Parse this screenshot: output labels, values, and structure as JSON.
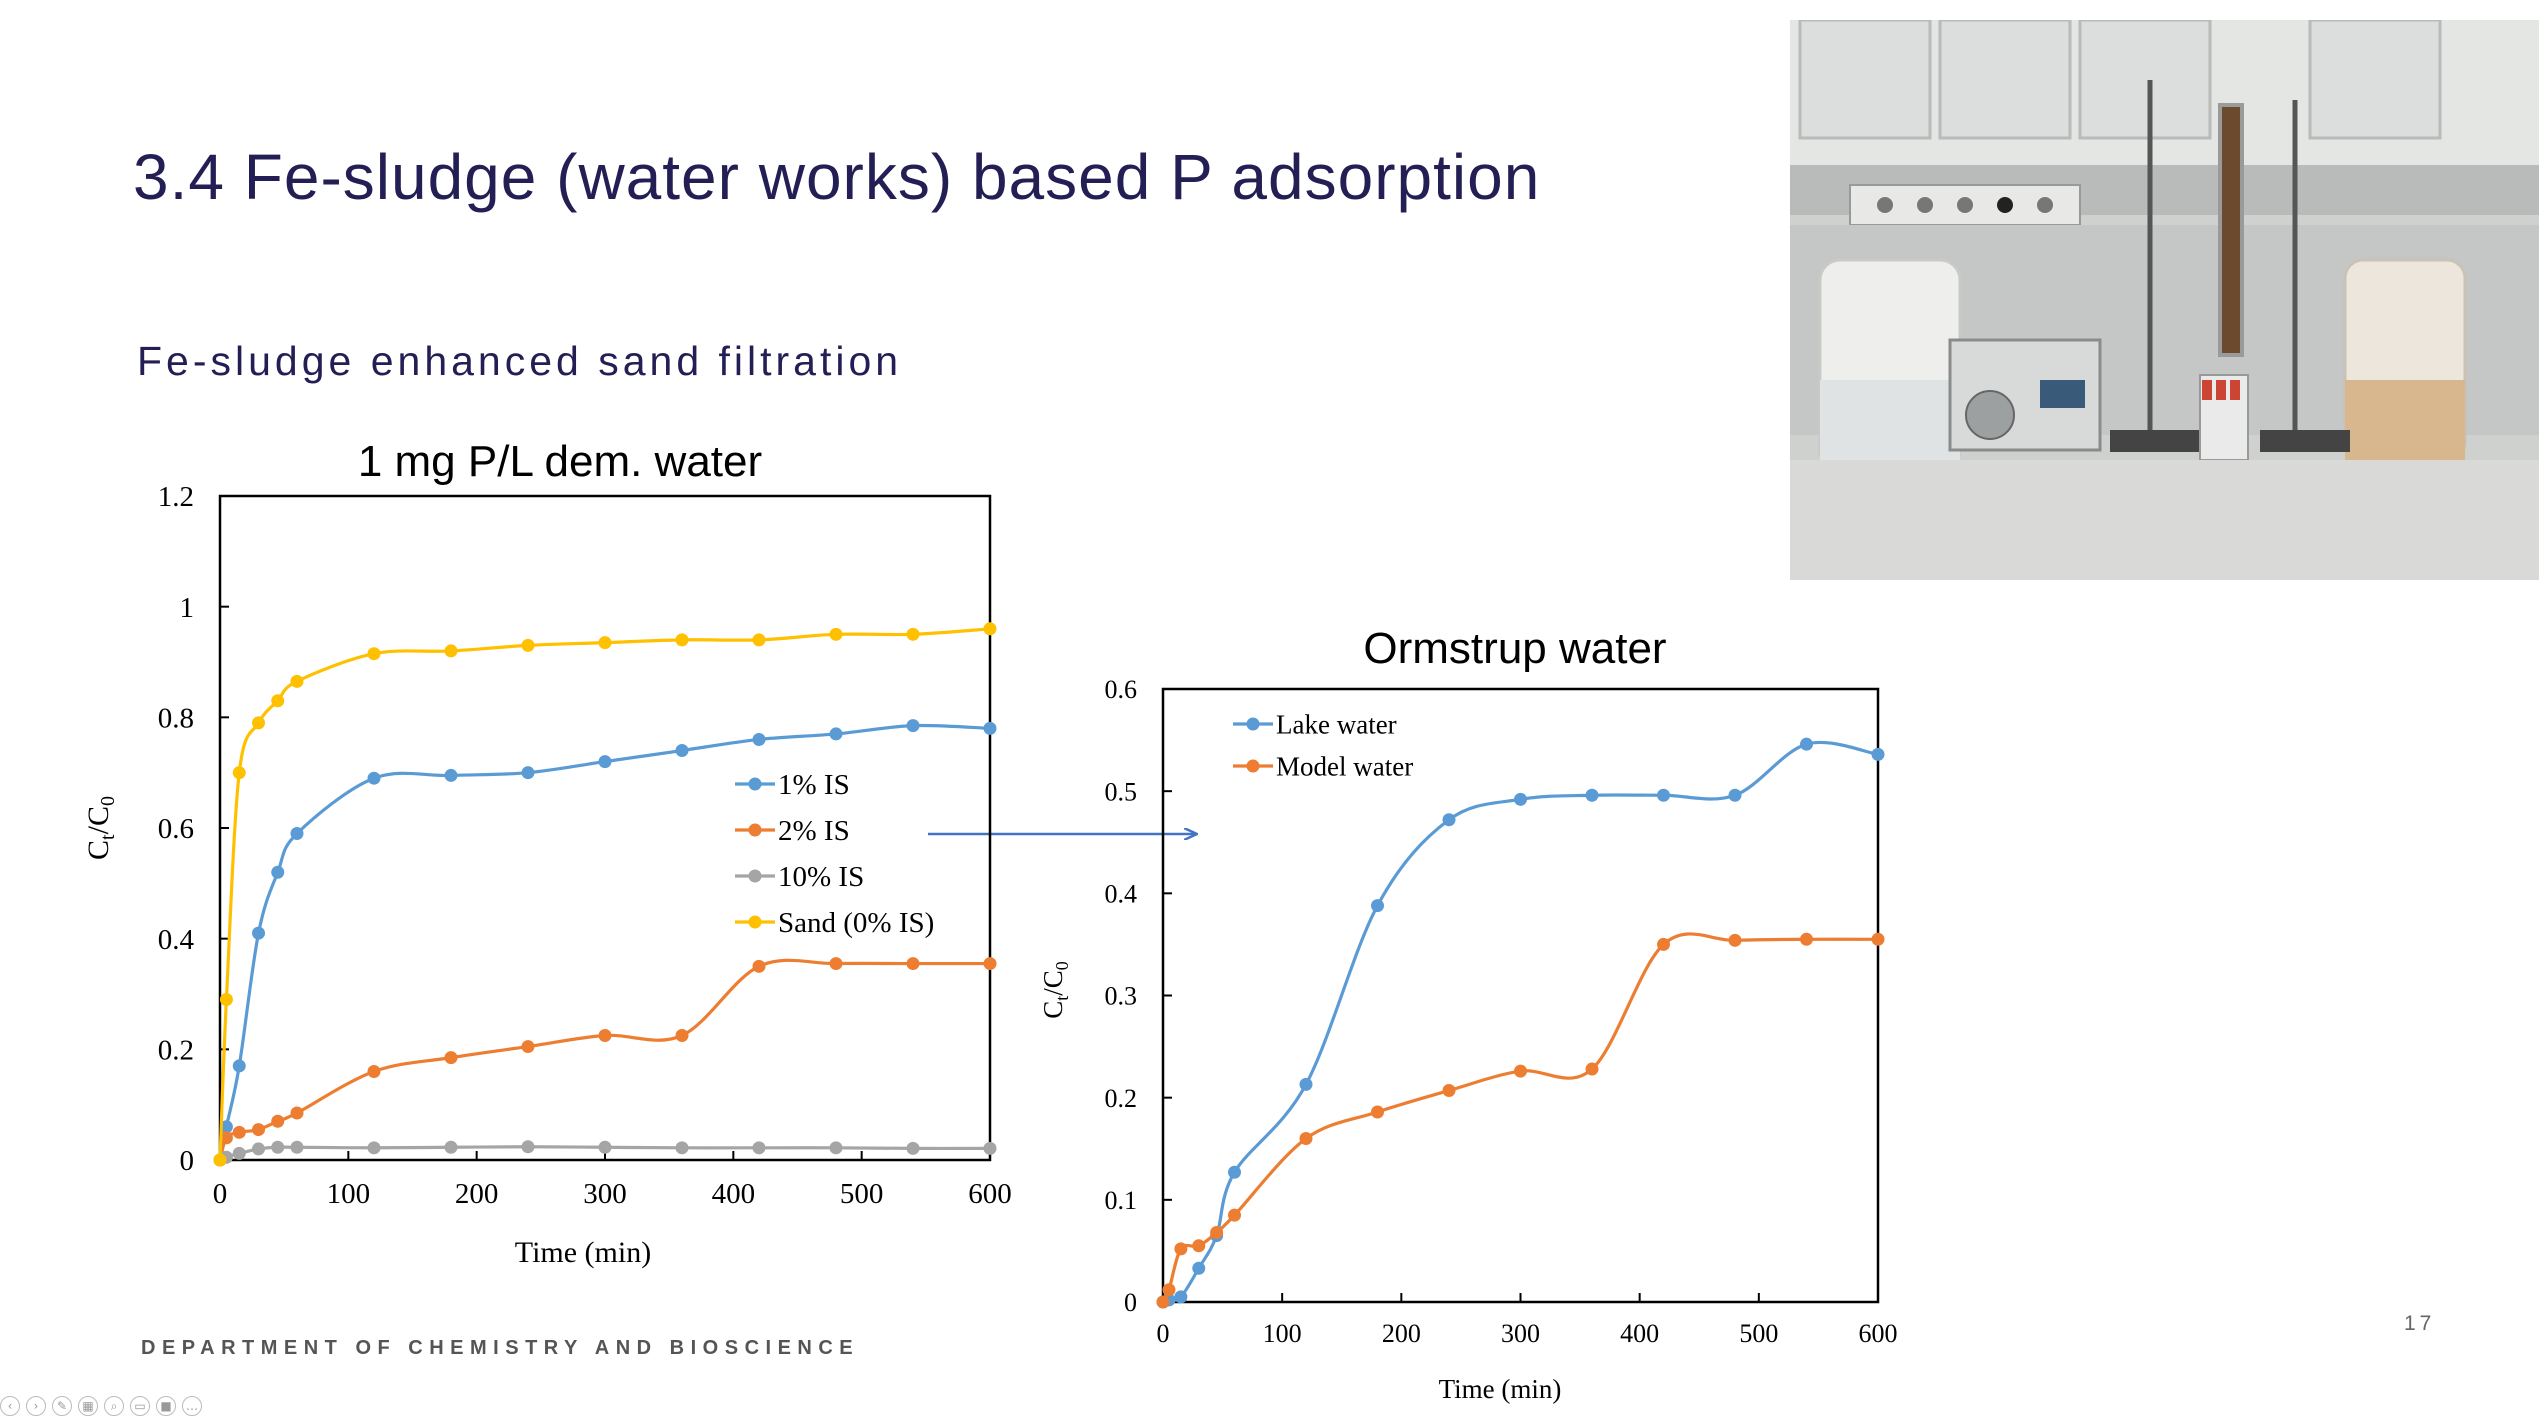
{
  "slide": {
    "title": "3.4 Fe-sludge (water works) based P adsorption",
    "subtitle": "Fe-sludge enhanced sand filtration",
    "footer": "DEPARTMENT OF CHEMISTRY AND BIOSCIENCE",
    "page_number": "17"
  },
  "toolbar": {
    "icons": [
      "previous-icon",
      "next-icon",
      "pen-icon",
      "slides-icon",
      "zoom-icon",
      "subtitles-icon",
      "camera-icon",
      "more-icon"
    ]
  },
  "photo": {
    "description_icon": "lab-setup-photo"
  },
  "colors": {
    "blue": "#5b9bd5",
    "orange": "#ed7d31",
    "gray": "#a5a5a5",
    "yellow": "#ffc000",
    "navy": "#231f54",
    "arrow": "#4472c4"
  },
  "chart_data": [
    {
      "type": "line",
      "title": "1 mg P/L dem. water",
      "xlabel": "Time (min)",
      "ylabel_main": "C",
      "ylabel_sub1": "t",
      "ylabel_slash": "/C",
      "ylabel_sub2": "0",
      "xlim": [
        0,
        600
      ],
      "ylim": [
        0,
        1.2
      ],
      "xticks": [
        "0",
        "100",
        "200",
        "300",
        "400",
        "500",
        "600"
      ],
      "yticks": [
        "0",
        "0.2",
        "0.4",
        "0.6",
        "0.8",
        "1",
        "1.2"
      ],
      "legend_position": "right-middle",
      "series": [
        {
          "name": "1% IS",
          "color": "#5b9bd5",
          "x": [
            0,
            5,
            15,
            30,
            45,
            60,
            120,
            180,
            240,
            300,
            360,
            420,
            480,
            540,
            600
          ],
          "y": [
            0,
            0.06,
            0.17,
            0.41,
            0.52,
            0.59,
            0.69,
            0.695,
            0.7,
            0.72,
            0.74,
            0.76,
            0.77,
            0.785,
            0.78
          ]
        },
        {
          "name": "2% IS",
          "color": "#ed7d31",
          "x": [
            0,
            5,
            15,
            30,
            45,
            60,
            120,
            180,
            240,
            300,
            360,
            420,
            480,
            540,
            600
          ],
          "y": [
            0,
            0.04,
            0.05,
            0.055,
            0.07,
            0.085,
            0.16,
            0.185,
            0.205,
            0.225,
            0.225,
            0.35,
            0.355,
            0.355,
            0.355
          ]
        },
        {
          "name": "10% IS",
          "color": "#a5a5a5",
          "x": [
            0,
            5,
            15,
            30,
            45,
            60,
            120,
            180,
            240,
            300,
            360,
            420,
            480,
            540,
            600
          ],
          "y": [
            0,
            0.005,
            0.012,
            0.02,
            0.023,
            0.023,
            0.022,
            0.023,
            0.024,
            0.023,
            0.022,
            0.022,
            0.022,
            0.021,
            0.021
          ]
        },
        {
          "name": "Sand (0% IS)",
          "color": "#ffc000",
          "x": [
            0,
            5,
            15,
            30,
            45,
            60,
            120,
            180,
            240,
            300,
            360,
            420,
            480,
            540,
            600
          ],
          "y": [
            0,
            0.29,
            0.7,
            0.79,
            0.83,
            0.865,
            0.915,
            0.92,
            0.93,
            0.935,
            0.94,
            0.94,
            0.95,
            0.95,
            0.96
          ]
        }
      ]
    },
    {
      "type": "line",
      "title": "Ormstrup water",
      "xlabel": "Time (min)",
      "ylabel_main": "C",
      "ylabel_sub1": "t",
      "ylabel_slash": "/C",
      "ylabel_sub2": "0",
      "xlim": [
        0,
        600
      ],
      "ylim": [
        0,
        0.6
      ],
      "xticks": [
        "0",
        "100",
        "200",
        "300",
        "400",
        "500",
        "600"
      ],
      "yticks": [
        "0",
        "0.1",
        "0.2",
        "0.3",
        "0.4",
        "0.5",
        "0.6"
      ],
      "legend_position": "top-left",
      "series": [
        {
          "name": "Lake water",
          "color": "#5b9bd5",
          "x": [
            0,
            5,
            15,
            30,
            45,
            60,
            120,
            180,
            240,
            300,
            360,
            420,
            480,
            540,
            600
          ],
          "y": [
            0,
            0.002,
            0.005,
            0.033,
            0.065,
            0.127,
            0.213,
            0.388,
            0.472,
            0.492,
            0.496,
            0.496,
            0.496,
            0.546,
            0.536
          ]
        },
        {
          "name": "Model water",
          "color": "#ed7d31",
          "x": [
            0,
            5,
            15,
            30,
            45,
            60,
            120,
            180,
            240,
            300,
            360,
            420,
            480,
            540,
            600
          ],
          "y": [
            0,
            0.012,
            0.052,
            0.055,
            0.068,
            0.085,
            0.16,
            0.186,
            0.207,
            0.226,
            0.228,
            0.35,
            0.354,
            0.355,
            0.355
          ]
        }
      ]
    }
  ]
}
